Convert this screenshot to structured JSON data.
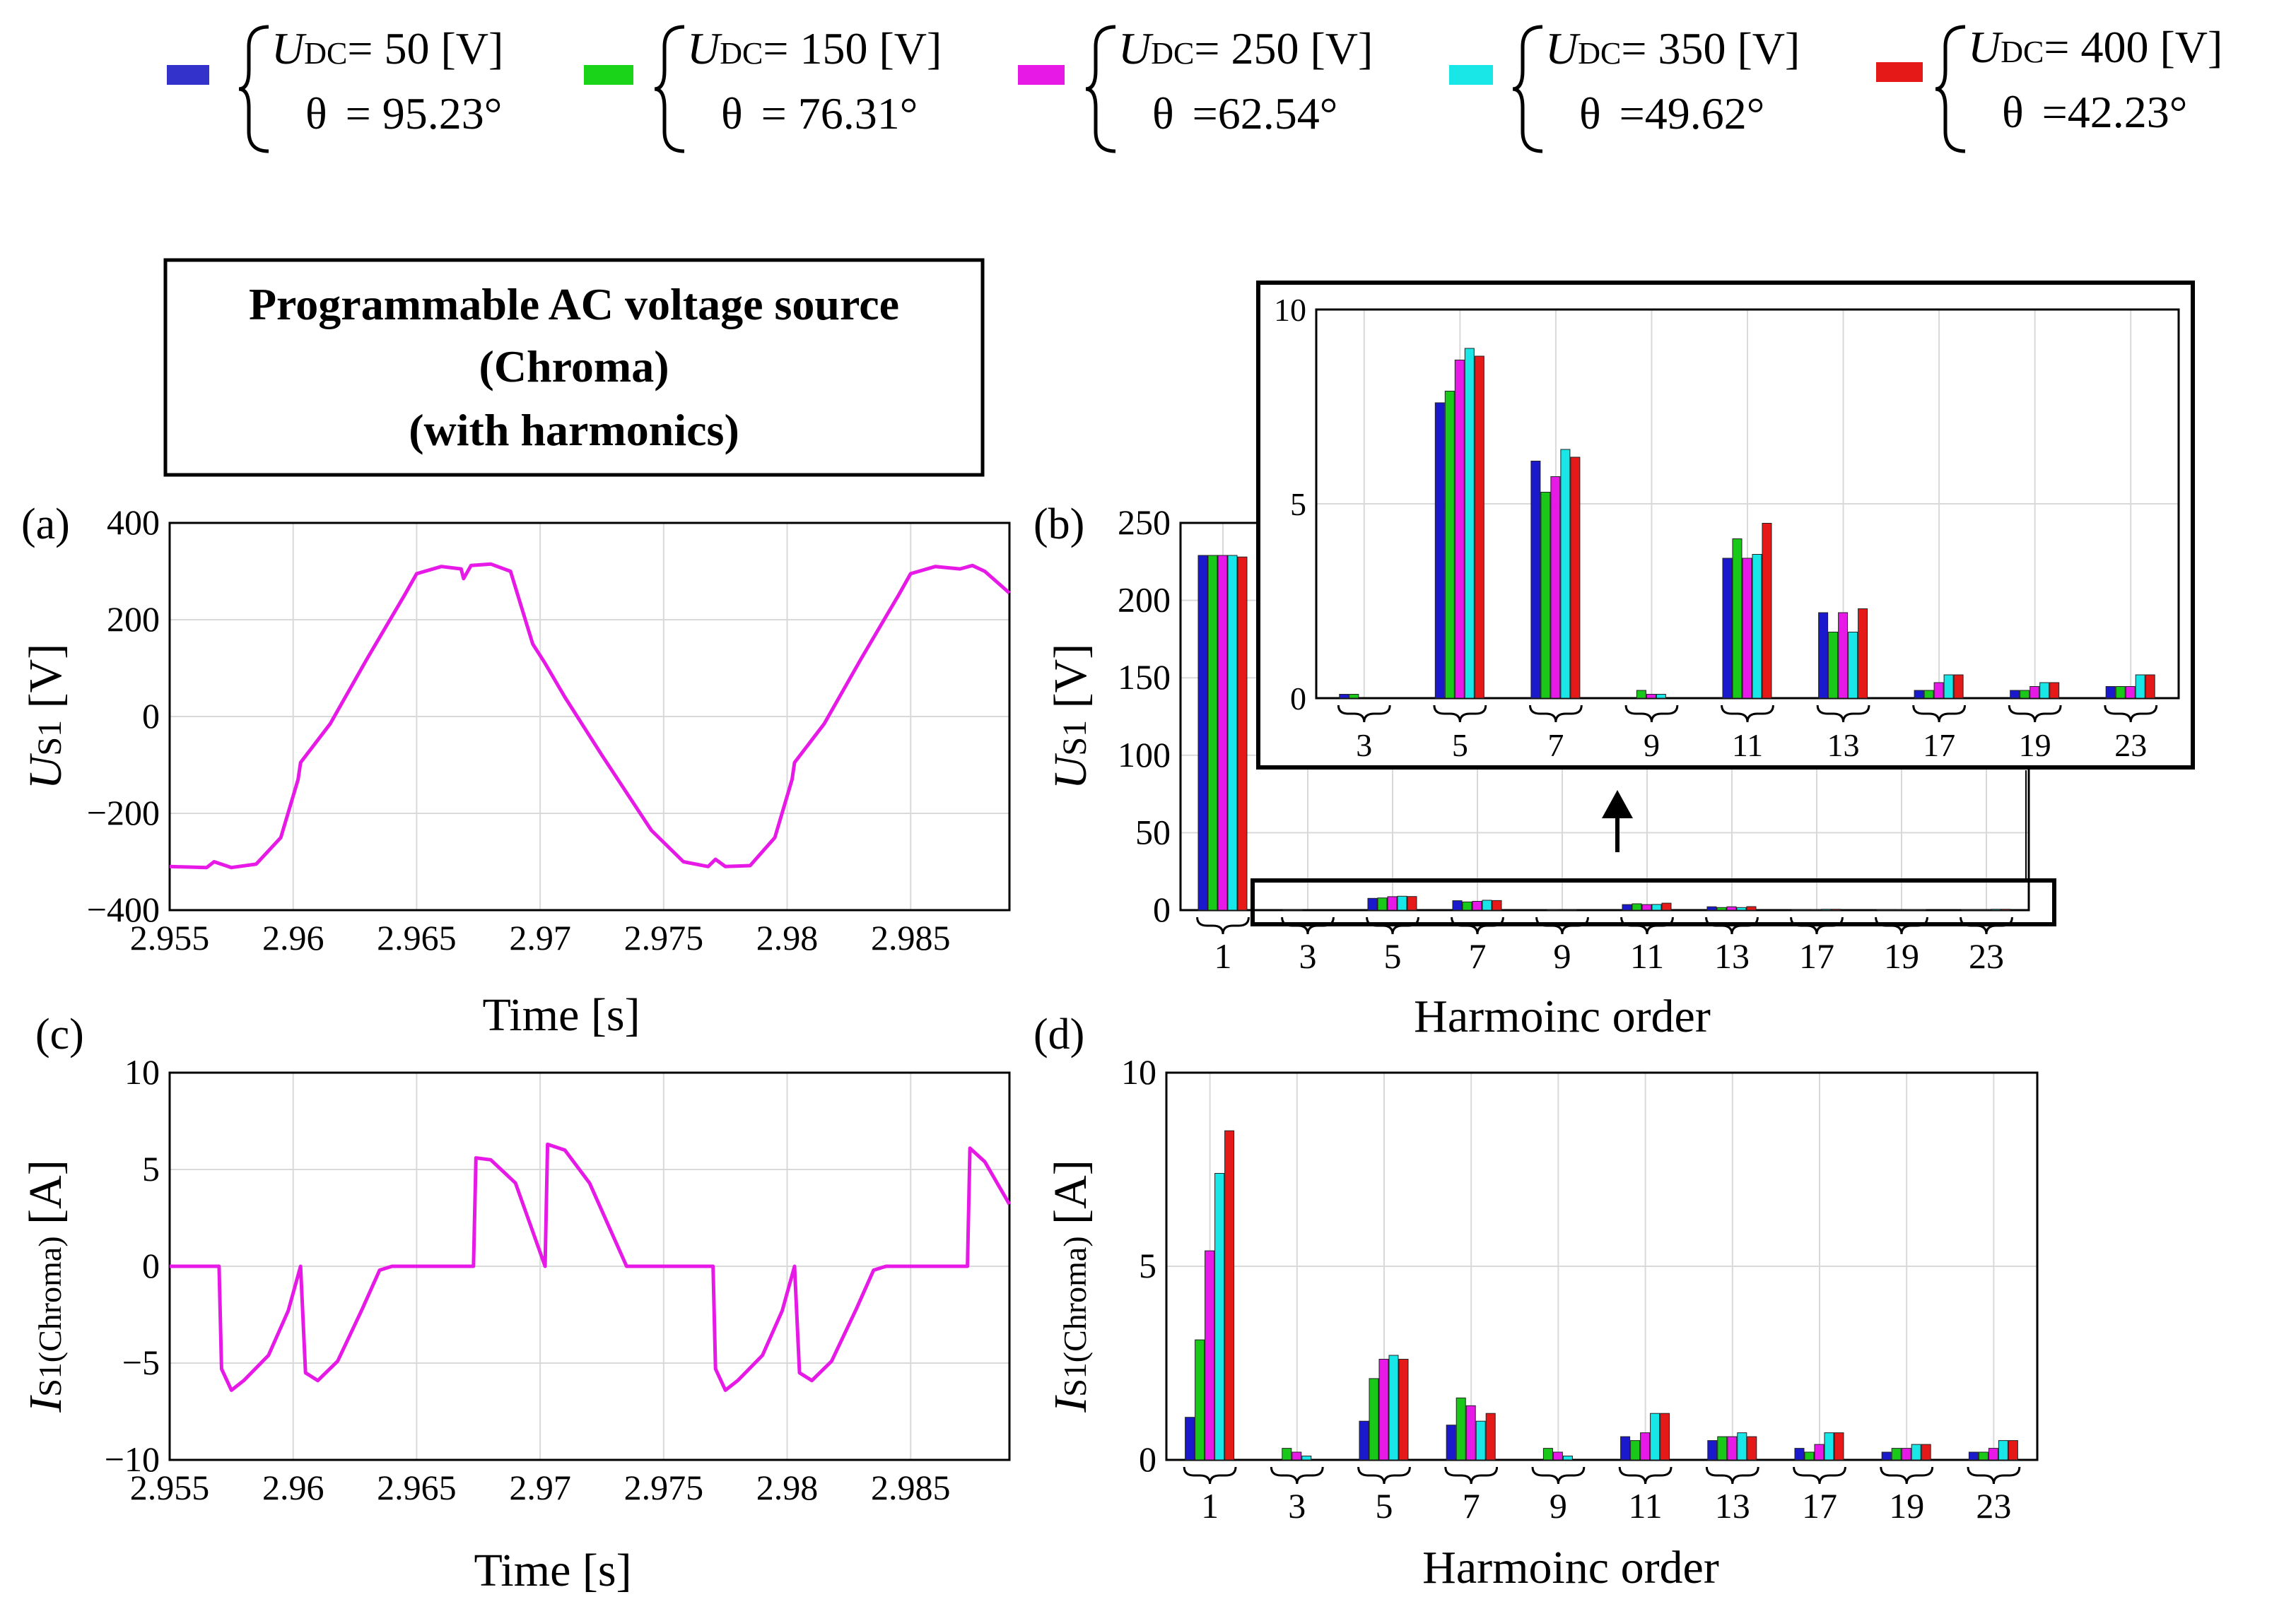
{
  "legend": [
    {
      "swatch": "#3333cc",
      "u_sym": "U",
      "u_sub": "DC",
      "u_eq": "= 50  [V]",
      "theta_sym": "θ",
      "theta_eq": "= 95.23°"
    },
    {
      "swatch": "#19d419",
      "u_sym": "U",
      "u_sub": "DC",
      "u_eq": "= 150 [V]",
      "theta_sym": "θ",
      "theta_eq": "= 76.31°"
    },
    {
      "swatch": "#e619e6",
      "u_sym": "U",
      "u_sub": "DC",
      "u_eq": "= 250 [V]",
      "theta_sym": "θ",
      "theta_eq": "=62.54°"
    },
    {
      "swatch": "#19e6e6",
      "u_sym": "U",
      "u_sub": "DC",
      "u_eq": "= 350 [V]",
      "theta_sym": "θ",
      "theta_eq": "=49.62°"
    },
    {
      "swatch": "#e61919",
      "u_sym": "U",
      "u_sub": "DC",
      "u_eq": "= 400 [V]",
      "theta_sym": "θ",
      "theta_eq": "=42.23°"
    }
  ],
  "source_box": {
    "line1": "Programmable AC voltage source",
    "line2": "(Chroma)",
    "line3": "(with harmonics)"
  },
  "panel_labels": {
    "a": "(a)",
    "b": "(b)",
    "c": "(c)",
    "d": "(d)"
  },
  "colors": {
    "series": [
      "#1a1acc",
      "#19c819",
      "#e619e6",
      "#19e6e6",
      "#e61919"
    ],
    "waveform": "#e619e6",
    "grid": "#d9d9d9"
  },
  "chart_data": [
    {
      "id": "a",
      "type": "line",
      "xlabel": "Time [s]",
      "ylabel_sym": "U",
      "ylabel_sub": "S1",
      "ylabel_unit": " [V]",
      "xlim": [
        2.955,
        2.989
      ],
      "ylim": [
        -400,
        400
      ],
      "xticks": [
        2.955,
        2.96,
        2.965,
        2.97,
        2.975,
        2.98,
        2.985
      ],
      "xtick_labels": [
        "2.955",
        "2.96",
        "2.965",
        "2.97",
        "2.975",
        "2.98",
        "2.985"
      ],
      "yticks": [
        -400,
        -200,
        0,
        200,
        400
      ],
      "ytick_labels": [
        "−400",
        "−200",
        "0",
        "200",
        "400"
      ],
      "x": [
        2.955,
        2.9565,
        2.9568,
        2.9575,
        2.9585,
        2.9595,
        2.9602,
        2.9603,
        2.9615,
        2.963,
        2.9645,
        2.965,
        2.966,
        2.9668,
        2.9669,
        2.9672,
        2.968,
        2.9688,
        2.9697,
        2.9702,
        2.971,
        2.9725,
        2.9745,
        2.9758,
        2.9768,
        2.9771,
        2.9775,
        2.9785,
        2.9795,
        2.9802,
        2.9803,
        2.9815,
        2.983,
        2.9845,
        2.985,
        2.986,
        2.987,
        2.9875,
        2.988,
        2.989
      ],
      "y": [
        -310,
        -312,
        -300,
        -312,
        -305,
        -250,
        -130,
        -95,
        -15,
        120,
        250,
        295,
        310,
        305,
        285,
        312,
        315,
        300,
        150,
        110,
        40,
        -80,
        -235,
        -300,
        -310,
        -295,
        -310,
        -308,
        -250,
        -130,
        -95,
        -15,
        120,
        250,
        295,
        310,
        305,
        312,
        300,
        255
      ]
    },
    {
      "id": "b",
      "type": "bar",
      "xlabel": "Harmoinc order",
      "ylabel_sym": "U",
      "ylabel_sub": "S1",
      "ylabel_unit": " [V]",
      "categories": [
        "1",
        "3",
        "5",
        "7",
        "9",
        "11",
        "13",
        "17",
        "19",
        "23"
      ],
      "ylim": [
        0,
        250
      ],
      "yticks": [
        0,
        50,
        100,
        150,
        200,
        250
      ],
      "ytick_labels": [
        "0",
        "50",
        "100",
        "150",
        "200",
        "250"
      ],
      "series": [
        {
          "name": "UDC=50 V",
          "values": [
            229,
            0.1,
            7.6,
            6.1,
            0.0,
            3.6,
            2.2,
            0.2,
            0.2,
            0.3
          ]
        },
        {
          "name": "UDC=150 V",
          "values": [
            229,
            0.1,
            7.9,
            5.3,
            0.2,
            4.1,
            1.7,
            0.2,
            0.2,
            0.3
          ]
        },
        {
          "name": "UDC=250 V",
          "values": [
            229,
            0.0,
            8.7,
            5.7,
            0.1,
            3.6,
            2.2,
            0.4,
            0.3,
            0.3
          ]
        },
        {
          "name": "UDC=350 V",
          "values": [
            229,
            0.0,
            9.0,
            6.4,
            0.1,
            3.7,
            1.7,
            0.6,
            0.4,
            0.6
          ]
        },
        {
          "name": "UDC=400 V",
          "values": [
            228,
            0.0,
            8.8,
            6.2,
            0.0,
            4.5,
            2.3,
            0.6,
            0.4,
            0.6
          ]
        }
      ],
      "inset": {
        "categories": [
          "3",
          "5",
          "7",
          "9",
          "11",
          "13",
          "17",
          "19",
          "23"
        ],
        "ylim": [
          0,
          10
        ],
        "yticks": [
          0,
          5,
          10
        ],
        "ytick_labels": [
          "0",
          "5",
          "10"
        ]
      }
    },
    {
      "id": "c",
      "type": "line",
      "xlabel": "Time [s]",
      "ylabel_sym": "I",
      "ylabel_sub": "S1(Chroma)",
      "ylabel_unit": " [A]",
      "xlim": [
        2.955,
        2.989
      ],
      "ylim": [
        -10,
        10
      ],
      "xticks": [
        2.955,
        2.96,
        2.965,
        2.97,
        2.975,
        2.98,
        2.985
      ],
      "xtick_labels": [
        "2.955",
        "2.96",
        "2.965",
        "2.97",
        "2.975",
        "2.98",
        "2.985"
      ],
      "yticks": [
        -10,
        -5,
        0,
        5,
        10
      ],
      "ytick_labels": [
        "−10",
        "−5",
        "0",
        "5",
        "10"
      ],
      "x": [
        2.955,
        2.957,
        2.9571,
        2.9575,
        2.958,
        2.959,
        2.9598,
        2.9603,
        2.9605,
        2.961,
        2.9618,
        2.9628,
        2.9635,
        2.964,
        2.9673,
        2.9674,
        2.968,
        2.969,
        2.9702,
        2.9703,
        2.971,
        2.972,
        2.9735,
        2.977,
        2.9771,
        2.9775,
        2.978,
        2.979,
        2.9798,
        2.9803,
        2.9805,
        2.981,
        2.9818,
        2.9828,
        2.9835,
        2.984,
        2.9873,
        2.9874,
        2.988,
        2.989
      ],
      "y": [
        0,
        0,
        -5.3,
        -6.4,
        -5.9,
        -4.6,
        -2.3,
        0,
        -5.5,
        -5.9,
        -4.9,
        -2.2,
        -0.2,
        0,
        0,
        5.6,
        5.5,
        4.3,
        0,
        6.3,
        6.0,
        4.3,
        0,
        0,
        -5.3,
        -6.4,
        -5.9,
        -4.6,
        -2.3,
        0,
        -5.5,
        -5.9,
        -4.9,
        -2.2,
        -0.2,
        0,
        0,
        6.1,
        5.4,
        3.2
      ]
    },
    {
      "id": "d",
      "type": "bar",
      "xlabel": "Harmoinc order",
      "ylabel_sym": "I",
      "ylabel_sub": "S1(Chroma)",
      "ylabel_unit": " [A]",
      "categories": [
        "1",
        "3",
        "5",
        "7",
        "9",
        "11",
        "13",
        "17",
        "19",
        "23"
      ],
      "ylim": [
        0,
        10
      ],
      "yticks": [
        0,
        5,
        10
      ],
      "ytick_labels": [
        "0",
        "5",
        "10"
      ],
      "series": [
        {
          "name": "UDC=50 V",
          "values": [
            1.1,
            0.0,
            1.0,
            0.9,
            0.0,
            0.6,
            0.5,
            0.3,
            0.2,
            0.2
          ]
        },
        {
          "name": "UDC=150 V",
          "values": [
            3.1,
            0.3,
            2.1,
            1.6,
            0.3,
            0.5,
            0.6,
            0.2,
            0.3,
            0.2
          ]
        },
        {
          "name": "UDC=250 V",
          "values": [
            5.4,
            0.2,
            2.6,
            1.4,
            0.2,
            0.7,
            0.6,
            0.4,
            0.3,
            0.3
          ]
        },
        {
          "name": "UDC=350 V",
          "values": [
            7.4,
            0.1,
            2.7,
            1.0,
            0.1,
            1.2,
            0.7,
            0.7,
            0.4,
            0.5
          ]
        },
        {
          "name": "UDC=400 V",
          "values": [
            8.5,
            0.0,
            2.6,
            1.2,
            0.0,
            1.2,
            0.6,
            0.7,
            0.4,
            0.5
          ]
        }
      ]
    }
  ]
}
